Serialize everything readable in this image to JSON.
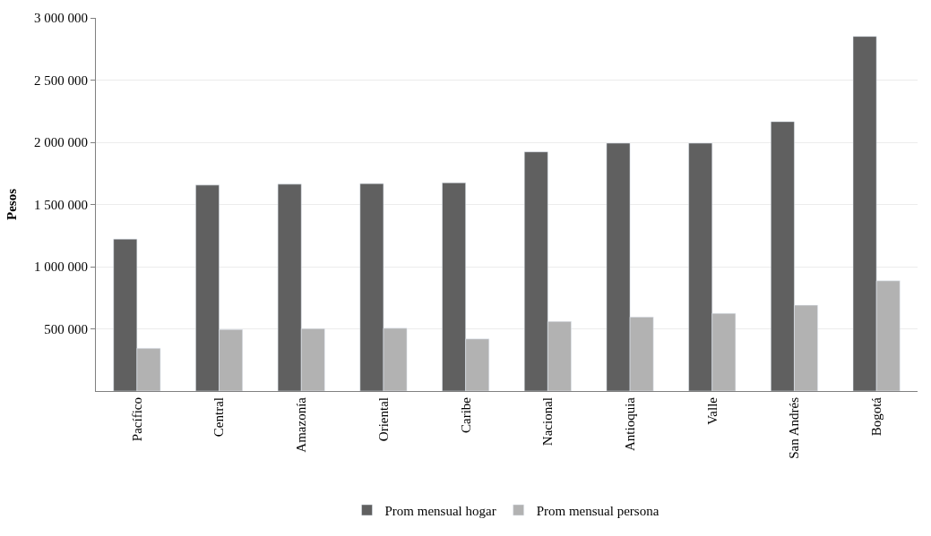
{
  "chart_data": {
    "type": "bar",
    "ylabel": "Pesos",
    "categories": [
      "Pacífico",
      "Central",
      "Amazonía",
      "Oriental",
      "Caribe",
      "Nacional",
      "Antioquia",
      "Valle",
      "San Andrés",
      "Bogotá"
    ],
    "series": [
      {
        "name": "Prom mensual hogar",
        "color": "#606060",
        "values": [
          1222000,
          1656000,
          1663000,
          1668000,
          1674000,
          1923000,
          1993000,
          1993000,
          2166000,
          2851000
        ]
      },
      {
        "name": "Prom mensual persona",
        "color": "#b2b2b2",
        "values": [
          344000,
          495000,
          502000,
          505000,
          419000,
          560000,
          595000,
          625000,
          690000,
          886000
        ]
      }
    ],
    "ylim": [
      0,
      3000000
    ],
    "yticks": [
      {
        "value": 500000,
        "label": "500 000"
      },
      {
        "value": 1000000,
        "label": "1 000 000"
      },
      {
        "value": 1500000,
        "label": "1 500 000"
      },
      {
        "value": 2000000,
        "label": "2 000 000"
      },
      {
        "value": 2500000,
        "label": "2 500 000"
      },
      {
        "value": 3000000,
        "label": "3 000 000"
      }
    ],
    "grid": "y",
    "legend": "bottom"
  }
}
